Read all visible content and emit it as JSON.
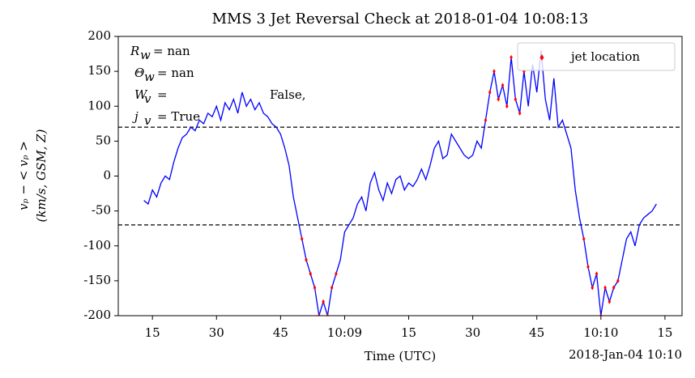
{
  "chart_data": {
    "type": "line",
    "title": "MMS 3 Jet Reversal Check at 2018-01-04 10:08:13",
    "xlabel": "Time (UTC)",
    "x_offset_label": "2018-Jan-04 10:10",
    "ylabel": [
      "vₚ − < vₚ >",
      "(km/s, GSM, Z)"
    ],
    "xlim": [
      7,
      139
    ],
    "xticks": [
      15,
      30,
      45,
      {
        "value": 60,
        "label": "10:09"
      },
      {
        "value": 75,
        "label": "15"
      },
      {
        "value": 90,
        "label": "30"
      },
      {
        "value": 105,
        "label": "45"
      },
      {
        "value": 120,
        "label": "10:10"
      },
      {
        "value": 135,
        "label": "15"
      }
    ],
    "ylim": [
      -200,
      200
    ],
    "yticks": [
      -200,
      -150,
      -100,
      -50,
      0,
      50,
      100,
      150,
      200
    ],
    "hlines": [
      70,
      -70
    ],
    "legend_loc": "upper right",
    "annotation": {
      "lines": [
        {
          "symbol": "R",
          "sub": "w",
          "text": "= nan"
        },
        {
          "symbol": "Θ",
          "sub": "w",
          "text": "= nan"
        },
        {
          "symbol": "W",
          "sub": "v",
          "text": "="
        },
        {
          "symbol": "j",
          "sub": "v",
          "text": "= True"
        }
      ],
      "extra": "False,"
    },
    "series": [
      {
        "kind": "line",
        "color": "#0000ff",
        "x": [
          13,
          14,
          15,
          16,
          17,
          18,
          19,
          20,
          21,
          22,
          23,
          24,
          25,
          26,
          27,
          28,
          29,
          30,
          31,
          32,
          33,
          34,
          35,
          36,
          37,
          38,
          39,
          40,
          41,
          42,
          43,
          44,
          45,
          46,
          47,
          48,
          49,
          50,
          51,
          52,
          53,
          54,
          55,
          56,
          57,
          58,
          59,
          60,
          61,
          62,
          63,
          64,
          65,
          66,
          67,
          68,
          69,
          70,
          71,
          72,
          73,
          74,
          75,
          76,
          77,
          78,
          79,
          80,
          81,
          82,
          83,
          84,
          85,
          86,
          87,
          88,
          89,
          90,
          91,
          92,
          93,
          94,
          95,
          96,
          97,
          98,
          99,
          100,
          101,
          102,
          103,
          104,
          105,
          106,
          107,
          108,
          109,
          110,
          111,
          112,
          113,
          114,
          115,
          116,
          117,
          118,
          119,
          120,
          121,
          122,
          123,
          124,
          125,
          126,
          127,
          128,
          129,
          130,
          131,
          132,
          133
        ],
        "values": [
          -35,
          -40,
          -20,
          -30,
          -10,
          0,
          -5,
          20,
          40,
          55,
          60,
          70,
          65,
          80,
          75,
          90,
          85,
          100,
          80,
          105,
          95,
          110,
          90,
          120,
          100,
          110,
          95,
          105,
          90,
          85,
          75,
          70,
          60,
          40,
          15,
          -30,
          -60,
          -90,
          -120,
          -140,
          -160,
          -200,
          -180,
          -200,
          -160,
          -140,
          -120,
          -80,
          -70,
          -60,
          -40,
          -30,
          -50,
          -10,
          5,
          -20,
          -35,
          -10,
          -25,
          -5,
          0,
          -20,
          -10,
          -15,
          -5,
          10,
          -5,
          15,
          40,
          50,
          25,
          30,
          60,
          50,
          40,
          30,
          25,
          30,
          50,
          40,
          80,
          120,
          150,
          110,
          130,
          100,
          170,
          110,
          90,
          150,
          100,
          160,
          120,
          180,
          110,
          80,
          140,
          70,
          80,
          60,
          40,
          -20,
          -60,
          -90,
          -130,
          -160,
          -140,
          -200,
          -160,
          -180,
          -160,
          -150,
          -120,
          -90,
          -80,
          -100,
          -70,
          -60,
          -55,
          -50,
          -40
        ]
      },
      {
        "kind": "scatter",
        "name": "jet location",
        "color": "#ff0000",
        "x": [
          50,
          51,
          52,
          53,
          54,
          55,
          56,
          57,
          58,
          93,
          94,
          95,
          96,
          97,
          98,
          99,
          100,
          101,
          102,
          116,
          117,
          118,
          119,
          120,
          121,
          122,
          123,
          124
        ],
        "values": [
          -90,
          -120,
          -140,
          -160,
          -200,
          -180,
          -200,
          -160,
          -140,
          80,
          120,
          150,
          110,
          130,
          100,
          170,
          110,
          90,
          150,
          -90,
          -130,
          -160,
          -140,
          -200,
          -160,
          -180,
          -160,
          -150
        ]
      }
    ]
  }
}
